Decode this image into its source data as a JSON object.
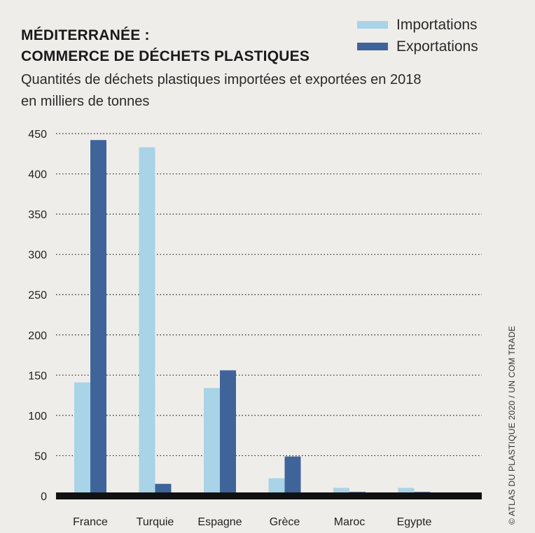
{
  "title_line1": "MÉDITERRANÉE :",
  "title_line2": "COMMERCE DE DÉCHETS PLASTIQUES",
  "subtitle_line1": "Quantités de déchets plastiques importées et exportées en 2018",
  "subtitle_line2": "en milliers de tonnes",
  "credit": "© ATLAS DU PLASTIQUE 2020 / UN COM TRADE",
  "colors": {
    "imports": "#a9d3e6",
    "exports": "#3f6499",
    "axis": "#111111"
  },
  "chart_data": {
    "type": "bar",
    "categories": [
      "France",
      "Turquie",
      "Espagne",
      "Grèce",
      "Maroc",
      "Egypte"
    ],
    "series": [
      {
        "name": "Importations",
        "values": [
          141,
          433,
          134,
          22,
          10,
          10
        ]
      },
      {
        "name": "Exportations",
        "values": [
          442,
          15,
          156,
          49,
          5,
          5
        ]
      }
    ],
    "yticks": [
      0,
      50,
      100,
      150,
      200,
      250,
      300,
      350,
      400,
      450
    ],
    "ylim": [
      0,
      450
    ],
    "grid": "dotted horizontal",
    "legend_position": "top-right"
  }
}
